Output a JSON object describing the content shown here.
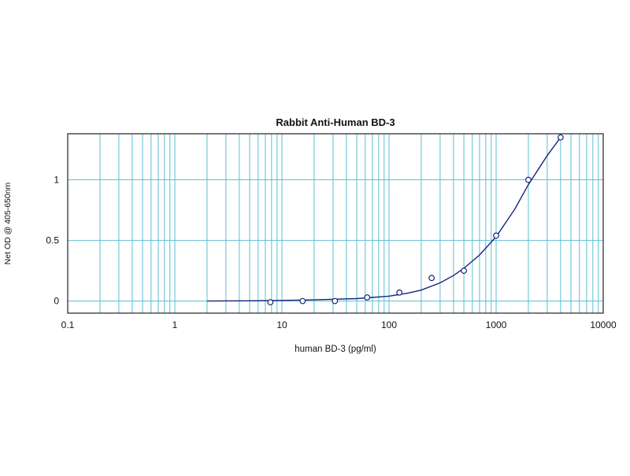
{
  "chart_data": {
    "type": "scatter",
    "title": "Rabbit Anti-Human BD-3",
    "xlabel": "human BD-3 (pg/ml)",
    "ylabel": "Net OD @ 405-650nm",
    "xscale": "log",
    "xlim": [
      0.1,
      10000
    ],
    "ylim": [
      -0.1,
      1.38
    ],
    "x_ticks": [
      0.1,
      1,
      10,
      100,
      1000,
      10000
    ],
    "x_tick_labels": [
      "0.1",
      "1",
      "10",
      "100",
      "1000",
      "10000"
    ],
    "y_ticks": [
      0,
      0.5,
      1
    ],
    "y_tick_labels": [
      "0",
      "0.5",
      "1"
    ],
    "grid": true,
    "grid_color": "#5bbfd0",
    "series_color": "#1a237e",
    "points": [
      {
        "x": 7.8,
        "y": -0.01
      },
      {
        "x": 15.6,
        "y": 0.0
      },
      {
        "x": 31.25,
        "y": 0.0
      },
      {
        "x": 62.5,
        "y": 0.03
      },
      {
        "x": 125,
        "y": 0.07
      },
      {
        "x": 250,
        "y": 0.19
      },
      {
        "x": 500,
        "y": 0.25
      },
      {
        "x": 1000,
        "y": 0.54
      },
      {
        "x": 2000,
        "y": 1.0
      },
      {
        "x": 4000,
        "y": 1.35
      }
    ],
    "fit_curve": [
      {
        "x": 2,
        "y": 0.0
      },
      {
        "x": 5,
        "y": 0.002
      },
      {
        "x": 10,
        "y": 0.005
      },
      {
        "x": 20,
        "y": 0.01
      },
      {
        "x": 50,
        "y": 0.02
      },
      {
        "x": 100,
        "y": 0.04
      },
      {
        "x": 150,
        "y": 0.065
      },
      {
        "x": 200,
        "y": 0.09
      },
      {
        "x": 300,
        "y": 0.15
      },
      {
        "x": 400,
        "y": 0.21
      },
      {
        "x": 500,
        "y": 0.27
      },
      {
        "x": 700,
        "y": 0.38
      },
      {
        "x": 1000,
        "y": 0.53
      },
      {
        "x": 1500,
        "y": 0.76
      },
      {
        "x": 2000,
        "y": 0.96
      },
      {
        "x": 3000,
        "y": 1.2
      },
      {
        "x": 4000,
        "y": 1.35
      }
    ]
  }
}
